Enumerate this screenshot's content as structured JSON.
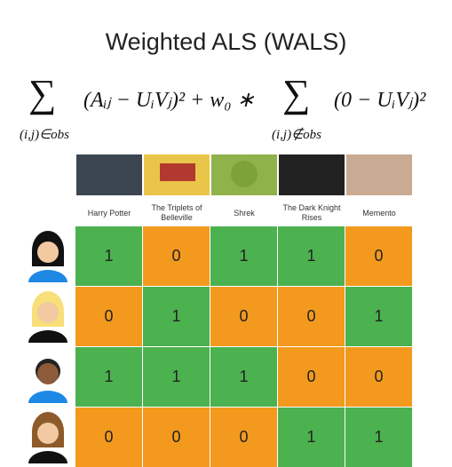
{
  "title": "Weighted ALS (WALS)",
  "formula": {
    "sigma": "∑",
    "term1": "(Aᵢⱼ − UᵢVⱼ)² + w₀ ∗",
    "sub1": "(i,j)∈obs",
    "term2": "(0 − UᵢVⱼ)²",
    "sub2": "(i,j)∉obs"
  },
  "table": {
    "columns": [
      "Harry Potter",
      "The Triplets of Belleville",
      "Shrek",
      "The Dark Knight Rises",
      "Memento"
    ],
    "rows": [
      [
        1,
        0,
        1,
        1,
        0
      ],
      [
        0,
        1,
        0,
        0,
        1
      ],
      [
        1,
        1,
        1,
        0,
        0
      ],
      [
        0,
        0,
        0,
        1,
        1
      ]
    ],
    "cell_colors": [
      "#f39a1e",
      "#4cb14f"
    ]
  }
}
